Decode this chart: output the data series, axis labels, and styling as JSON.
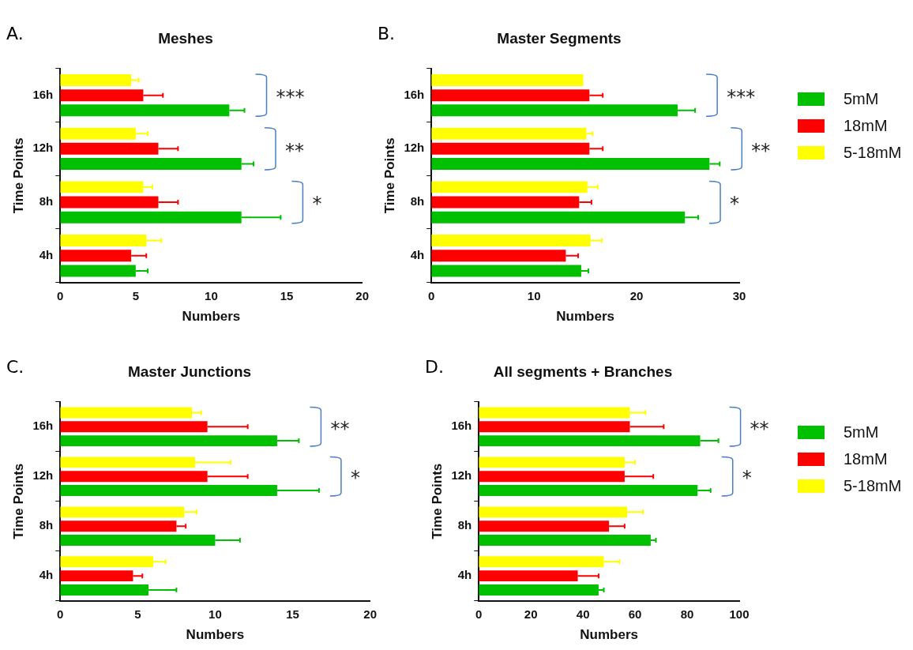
{
  "chart_data": [
    {
      "type": "bar",
      "orientation": "horizontal",
      "title": "Meshes",
      "xlabel": "Numbers",
      "ylabel": "Time Points",
      "categories": [
        "16h",
        "12h",
        "8h",
        "4h"
      ],
      "xlim": [
        0,
        20
      ],
      "xticks": [
        0,
        5,
        10,
        15,
        20
      ],
      "legend": false,
      "series": [
        {
          "color": "#00c000",
          "values": [
            11.2,
            12.0,
            12.0,
            5.0
          ],
          "errors": [
            [
              11.2,
              12.2
            ],
            [
              12.0,
              12.8
            ],
            [
              12.0,
              14.6
            ],
            [
              5.0,
              5.8
            ]
          ]
        },
        {
          "color": "#ff0000",
          "values": [
            5.5,
            6.5,
            6.5,
            4.7
          ],
          "errors": [
            [
              5.5,
              6.8
            ],
            [
              6.5,
              7.8
            ],
            [
              6.5,
              7.8
            ],
            [
              4.7,
              5.7
            ]
          ]
        },
        {
          "color": "#ffff00",
          "values": [
            4.7,
            5.0,
            5.5,
            5.7
          ],
          "errors": [
            [
              4.7,
              5.2
            ],
            [
              5.0,
              5.8
            ],
            [
              5.5,
              6.1
            ],
            [
              5.7,
              6.7
            ]
          ]
        }
      ],
      "annotations": [
        "A.",
        "***",
        "**",
        "*"
      ]
    },
    {
      "type": "bar",
      "orientation": "horizontal",
      "title": "Master Segments",
      "xlabel": "Numbers",
      "ylabel": "Time Points",
      "categories": [
        "16h",
        "12h",
        "8h",
        "4h"
      ],
      "xlim": [
        0,
        30
      ],
      "xticks": [
        0,
        10,
        20,
        30
      ],
      "legend": "top right",
      "series": [
        {
          "name": "5mM",
          "color": "#00c000",
          "values": [
            24.0,
            27.1,
            24.7,
            14.6
          ],
          "errors": [
            [
              24.0,
              25.7
            ],
            [
              27.1,
              28.1
            ],
            [
              24.7,
              26.0
            ],
            [
              14.6,
              15.3
            ]
          ]
        },
        {
          "name": "18mM",
          "color": "#ff0000",
          "values": [
            15.4,
            15.4,
            14.4,
            13.1
          ],
          "errors": [
            [
              15.4,
              16.7
            ],
            [
              15.4,
              16.7
            ],
            [
              14.4,
              15.6
            ],
            [
              13.1,
              14.3
            ]
          ]
        },
        {
          "name": "5-18mM",
          "color": "#ffff00",
          "values": [
            14.8,
            15.1,
            15.2,
            15.5
          ],
          "errors": [
            null,
            [
              15.1,
              15.7
            ],
            [
              15.2,
              16.2
            ],
            [
              15.5,
              16.6
            ]
          ]
        }
      ],
      "annotations": [
        "B.",
        "***",
        "**",
        "*"
      ]
    },
    {
      "type": "bar",
      "orientation": "horizontal",
      "title": "Master Junctions",
      "xlabel": "Numbers",
      "ylabel": "Time Points",
      "categories": [
        "16h",
        "12h",
        "8h",
        "4h"
      ],
      "xlim": [
        0,
        20
      ],
      "xticks": [
        0,
        5,
        10,
        15,
        20
      ],
      "legend": false,
      "series": [
        {
          "color": "#00c000",
          "values": [
            14.0,
            14.0,
            10.0,
            5.7
          ],
          "errors": [
            [
              14.0,
              15.4
            ],
            [
              14.0,
              16.7
            ],
            [
              10.0,
              11.6
            ],
            [
              5.7,
              7.5
            ]
          ]
        },
        {
          "color": "#ff0000",
          "values": [
            9.5,
            9.5,
            7.5,
            4.7
          ],
          "errors": [
            [
              9.5,
              12.1
            ],
            [
              9.5,
              12.1
            ],
            [
              7.5,
              8.1
            ],
            [
              4.7,
              5.3
            ]
          ]
        },
        {
          "color": "#ffff00",
          "values": [
            8.5,
            8.7,
            8.0,
            6.0
          ],
          "errors": [
            [
              8.5,
              9.1
            ],
            [
              8.7,
              11.0
            ],
            [
              8.0,
              8.8
            ],
            [
              6.0,
              6.8
            ]
          ]
        }
      ],
      "annotations": [
        "C.",
        "**",
        "*"
      ]
    },
    {
      "type": "bar",
      "orientation": "horizontal",
      "title": "All segments + Branches",
      "xlabel": "Numbers",
      "ylabel": "Time Points",
      "categories": [
        "16h",
        "12h",
        "8h",
        "4h"
      ],
      "xlim": [
        0,
        100
      ],
      "xticks": [
        0,
        20,
        40,
        60,
        80,
        100
      ],
      "legend": "top right",
      "series": [
        {
          "name": "5mM",
          "color": "#00c000",
          "values": [
            85,
            84,
            66,
            46
          ],
          "errors": [
            [
              85,
              92
            ],
            [
              84,
              89
            ],
            [
              66,
              68
            ],
            [
              46,
              48
            ]
          ]
        },
        {
          "name": "18mM",
          "color": "#ff0000",
          "values": [
            58,
            56,
            50,
            38
          ],
          "errors": [
            [
              58,
              71
            ],
            [
              56,
              67
            ],
            [
              50,
              56
            ],
            [
              38,
              46
            ]
          ]
        },
        {
          "name": "5-18mM",
          "color": "#ffff00",
          "values": [
            58,
            56,
            57,
            48
          ],
          "errors": [
            [
              58,
              64
            ],
            [
              56,
              60
            ],
            [
              57,
              63
            ],
            [
              48,
              54
            ]
          ]
        }
      ],
      "annotations": [
        "D.",
        "**",
        "*"
      ]
    }
  ]
}
